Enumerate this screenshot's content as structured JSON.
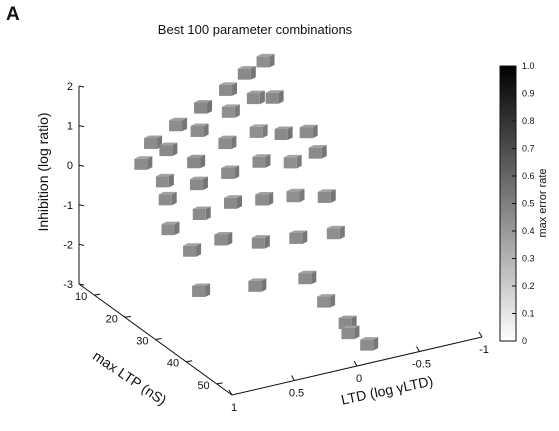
{
  "figure": {
    "panel_letter": "A"
  },
  "chart_data": {
    "type": "scatter",
    "title": "Best 100 parameter combinations",
    "xlabel": "LTD (log γLTD)",
    "ylabel": "max LTP (nS)",
    "zlabel": "Inhibition (log ratio)",
    "x_ticks": [
      "1",
      "0.5",
      "0",
      "-0.5",
      "-1"
    ],
    "y_ticks": [
      "10",
      "20",
      "30",
      "40",
      "50"
    ],
    "z_ticks": [
      "2",
      "1",
      "0",
      "-1",
      "-2",
      "-3"
    ],
    "xlim": [
      1,
      -1
    ],
    "ylim": [
      5,
      55
    ],
    "zlim": [
      -3,
      2
    ],
    "grid": false,
    "colorbar": {
      "label": "max error rate",
      "ticks": [
        "1.0",
        "0.9",
        "0.8",
        "0.7",
        "0.6",
        "0.5",
        "0.4",
        "0.3",
        "0.2",
        "0.1",
        "0"
      ],
      "range": [
        0,
        1
      ]
    },
    "points": [
      {
        "x": 0.55,
        "y": 10,
        "z": 0.5,
        "e": 0.45
      },
      {
        "x": 0.35,
        "y": 10,
        "z": 0.8,
        "e": 0.45
      },
      {
        "x": 0.15,
        "y": 10,
        "z": 1.1,
        "e": 0.47
      },
      {
        "x": -0.05,
        "y": 10,
        "z": 1.4,
        "e": 0.45
      },
      {
        "x": -0.2,
        "y": 10,
        "z": 1.7,
        "e": 0.46
      },
      {
        "x": -0.35,
        "y": 10,
        "z": 1.9,
        "e": 0.44
      },
      {
        "x": 0.75,
        "y": 15,
        "z": 0.4,
        "e": 0.45
      },
      {
        "x": 0.55,
        "y": 15,
        "z": 0.6,
        "e": 0.46
      },
      {
        "x": 0.3,
        "y": 15,
        "z": 0.9,
        "e": 0.45
      },
      {
        "x": 0.05,
        "y": 15,
        "z": 1.2,
        "e": 0.44
      },
      {
        "x": -0.15,
        "y": 15,
        "z": 1.4,
        "e": 0.45
      },
      {
        "x": -0.3,
        "y": 15,
        "z": 1.3,
        "e": 0.46
      },
      {
        "x": 0.7,
        "y": 20,
        "z": 0.2,
        "e": 0.45
      },
      {
        "x": 0.45,
        "y": 20,
        "z": 0.5,
        "e": 0.47
      },
      {
        "x": 0.2,
        "y": 20,
        "z": 0.8,
        "e": 0.45
      },
      {
        "x": -0.05,
        "y": 20,
        "z": 0.9,
        "e": 0.44
      },
      {
        "x": -0.25,
        "y": 20,
        "z": 0.7,
        "e": 0.46
      },
      {
        "x": -0.45,
        "y": 20,
        "z": 0.6,
        "e": 0.45
      },
      {
        "x": 0.8,
        "y": 25,
        "z": 0.1,
        "e": 0.45
      },
      {
        "x": 0.55,
        "y": 25,
        "z": 0.3,
        "e": 0.46
      },
      {
        "x": 0.3,
        "y": 25,
        "z": 0.4,
        "e": 0.45
      },
      {
        "x": 0.05,
        "y": 25,
        "z": 0.5,
        "e": 0.45
      },
      {
        "x": -0.2,
        "y": 25,
        "z": 0.3,
        "e": 0.44
      },
      {
        "x": -0.4,
        "y": 25,
        "z": 0.4,
        "e": 0.46
      },
      {
        "x": 0.9,
        "y": 30,
        "z": -0.3,
        "e": 0.45
      },
      {
        "x": 0.65,
        "y": 30,
        "z": -0.1,
        "e": 0.45
      },
      {
        "x": 0.4,
        "y": 30,
        "z": 0.0,
        "e": 0.46
      },
      {
        "x": 0.15,
        "y": 30,
        "z": -0.1,
        "e": 0.45
      },
      {
        "x": -0.1,
        "y": 30,
        "z": -0.2,
        "e": 0.44
      },
      {
        "x": -0.35,
        "y": 30,
        "z": -0.4,
        "e": 0.46
      },
      {
        "x": 0.85,
        "y": 35,
        "z": -0.6,
        "e": 0.45
      },
      {
        "x": 0.6,
        "y": 35,
        "z": -0.5,
        "e": 0.45
      },
      {
        "x": 0.3,
        "y": 35,
        "z": -0.8,
        "e": 0.46
      },
      {
        "x": 0.0,
        "y": 35,
        "z": -0.9,
        "e": 0.45
      },
      {
        "x": -0.3,
        "y": 35,
        "z": -1.0,
        "e": 0.44
      },
      {
        "x": 0.9,
        "y": 40,
        "z": -1.3,
        "e": 0.45
      },
      {
        "x": 0.45,
        "y": 40,
        "z": -1.5,
        "e": 0.46
      },
      {
        "x": 0.05,
        "y": 40,
        "z": -1.6,
        "e": 0.45
      },
      {
        "x": -0.1,
        "y": 40,
        "z": -2.3,
        "e": 0.44
      },
      {
        "x": -0.15,
        "y": 45,
        "z": -2.6,
        "e": 0.46
      },
      {
        "x": -0.05,
        "y": 50,
        "z": -2.5,
        "e": 0.45
      },
      {
        "x": -0.2,
        "y": 50,
        "z": -2.9,
        "e": 0.45
      }
    ]
  }
}
